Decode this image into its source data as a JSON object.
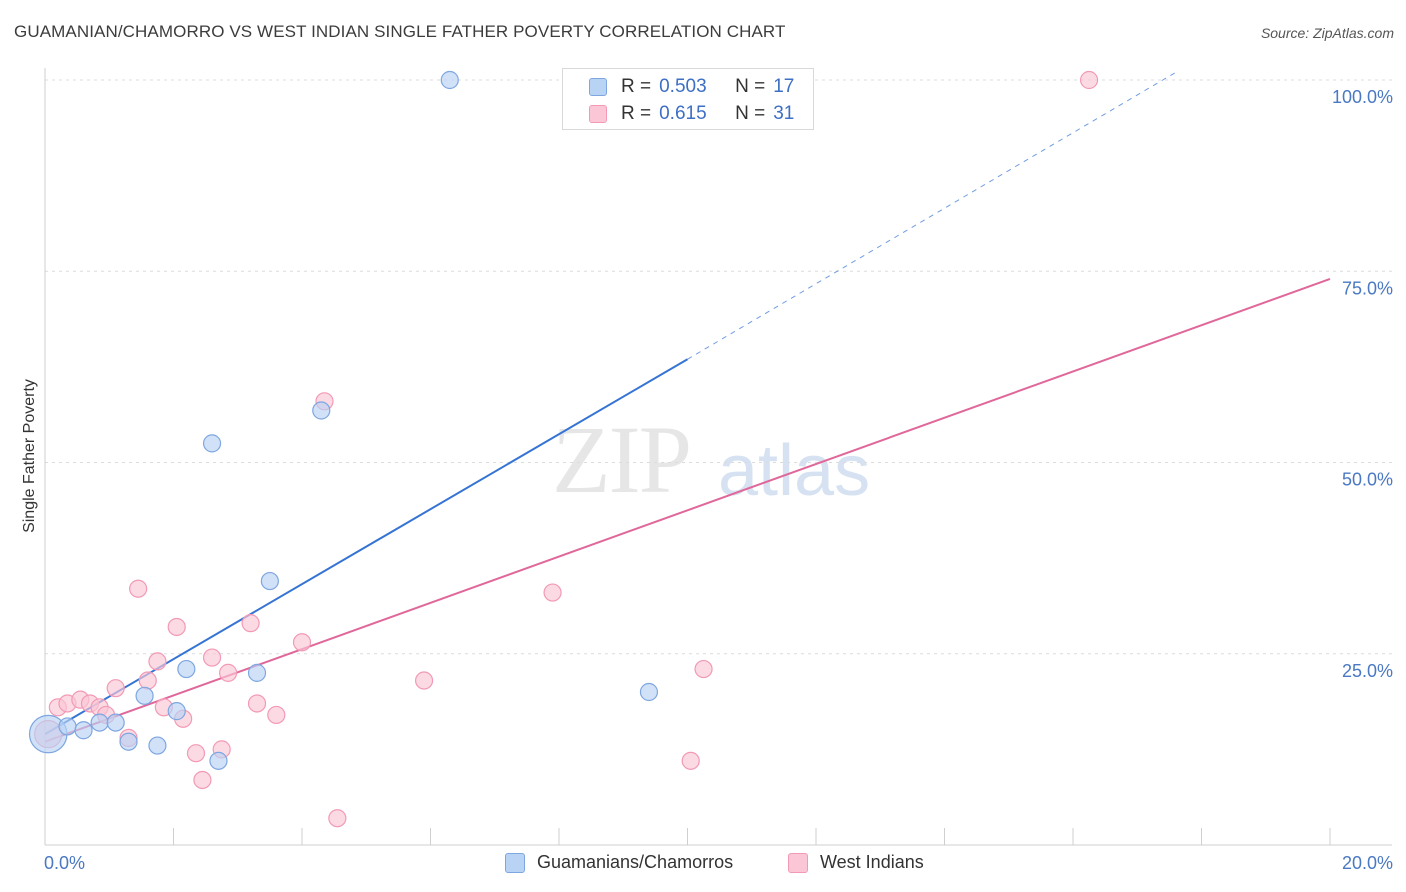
{
  "header": {
    "title": "GUAMANIAN/CHAMORRO VS WEST INDIAN SINGLE FATHER POVERTY CORRELATION CHART",
    "source": "Source: ZipAtlas.com"
  },
  "watermark": {
    "zip": "ZIP",
    "atlas": "atlas"
  },
  "legend": {
    "rows": [
      {
        "r_label": "R =",
        "r_value": "0.503",
        "n_label": "N =",
        "n_value": "17",
        "fill": "#b9d3f5",
        "stroke": "#7ea6e0"
      },
      {
        "r_label": "R =",
        "r_value": "0.615",
        "n_label": "N =",
        "n_value": "31",
        "fill": "#fbc6d5",
        "stroke": "#f29ab5"
      }
    ]
  },
  "bottom_legend": [
    {
      "label": "Guamanians/Chamorros",
      "fill": "#b9d3f5",
      "stroke": "#7ea6e0"
    },
    {
      "label": "West Indians",
      "fill": "#fbc6d5",
      "stroke": "#f29ab5"
    }
  ],
  "chart_data": {
    "type": "scatter",
    "title": "GUAMANIAN/CHAMORRO VS WEST INDIAN SINGLE FATHER POVERTY CORRELATION CHART",
    "xlabel": "",
    "ylabel": "Single Father Poverty",
    "xlim": [
      0,
      20
    ],
    "ylim": [
      0,
      100
    ],
    "x_tick_labels": [
      "0.0%",
      "20.0%"
    ],
    "y_ticks": [
      25,
      50,
      75,
      100
    ],
    "y_tick_labels": [
      "25.0%",
      "50.0%",
      "75.0%",
      "100.0%"
    ],
    "grid": "horizontal dashed",
    "legend_position": "top-center",
    "series": [
      {
        "name": "Guamanians/Chamorros",
        "color": "#3574d4",
        "point_fill": "#b9d3f5",
        "point_stroke": "#7ea6e0",
        "points": [
          {
            "x": 0.05,
            "y": 14.5,
            "size": 22
          },
          {
            "x": 0.35,
            "y": 15.5,
            "size": 10
          },
          {
            "x": 0.6,
            "y": 15.0,
            "size": 10
          },
          {
            "x": 0.85,
            "y": 16.0,
            "size": 10
          },
          {
            "x": 1.1,
            "y": 16.0,
            "size": 10
          },
          {
            "x": 1.3,
            "y": 13.5,
            "size": 10
          },
          {
            "x": 1.55,
            "y": 19.5,
            "size": 10
          },
          {
            "x": 1.75,
            "y": 13.0,
            "size": 10
          },
          {
            "x": 2.05,
            "y": 17.5,
            "size": 10
          },
          {
            "x": 2.2,
            "y": 23.0,
            "size": 10
          },
          {
            "x": 2.6,
            "y": 52.5,
            "size": 10
          },
          {
            "x": 2.7,
            "y": 11.0,
            "size": 10
          },
          {
            "x": 3.3,
            "y": 22.5,
            "size": 10
          },
          {
            "x": 3.5,
            "y": 34.5,
            "size": 10
          },
          {
            "x": 4.3,
            "y": 56.8,
            "size": 10
          },
          {
            "x": 6.3,
            "y": 100.0,
            "size": 10
          },
          {
            "x": 9.4,
            "y": 20.0,
            "size": 10
          }
        ],
        "trend": {
          "x0": 0.0,
          "y0": 14.5,
          "x1": 10.0,
          "y1": 63.5,
          "dash_x1": 17.6,
          "dash_y1": 101.0
        }
      },
      {
        "name": "West Indians",
        "color": "#e0679a",
        "point_fill": "#fbc6d5",
        "point_stroke": "#f29ab5",
        "points": [
          {
            "x": 0.05,
            "y": 14.5,
            "size": 16
          },
          {
            "x": 0.2,
            "y": 18.0,
            "size": 10
          },
          {
            "x": 0.35,
            "y": 18.5,
            "size": 10
          },
          {
            "x": 0.55,
            "y": 19.0,
            "size": 10
          },
          {
            "x": 0.7,
            "y": 18.5,
            "size": 10
          },
          {
            "x": 0.85,
            "y": 18.0,
            "size": 10
          },
          {
            "x": 0.95,
            "y": 17.0,
            "size": 10
          },
          {
            "x": 1.1,
            "y": 20.5,
            "size": 10
          },
          {
            "x": 1.3,
            "y": 14.0,
            "size": 10
          },
          {
            "x": 1.45,
            "y": 33.5,
            "size": 10
          },
          {
            "x": 1.6,
            "y": 21.5,
            "size": 10
          },
          {
            "x": 1.75,
            "y": 24.0,
            "size": 10
          },
          {
            "x": 1.85,
            "y": 18.0,
            "size": 10
          },
          {
            "x": 2.05,
            "y": 28.5,
            "size": 10
          },
          {
            "x": 2.15,
            "y": 16.5,
            "size": 10
          },
          {
            "x": 2.35,
            "y": 12.0,
            "size": 10
          },
          {
            "x": 2.45,
            "y": 8.5,
            "size": 10
          },
          {
            "x": 2.6,
            "y": 24.5,
            "size": 10
          },
          {
            "x": 2.75,
            "y": 12.5,
            "size": 10
          },
          {
            "x": 2.85,
            "y": 22.5,
            "size": 10
          },
          {
            "x": 3.2,
            "y": 29.0,
            "size": 10
          },
          {
            "x": 3.3,
            "y": 18.5,
            "size": 10
          },
          {
            "x": 3.6,
            "y": 17.0,
            "size": 10
          },
          {
            "x": 4.0,
            "y": 26.5,
            "size": 10
          },
          {
            "x": 4.35,
            "y": 58.0,
            "size": 10
          },
          {
            "x": 4.55,
            "y": 3.5,
            "size": 10
          },
          {
            "x": 5.9,
            "y": 21.5,
            "size": 10
          },
          {
            "x": 7.9,
            "y": 33.0,
            "size": 10
          },
          {
            "x": 10.05,
            "y": 11.0,
            "size": 10
          },
          {
            "x": 10.25,
            "y": 23.0,
            "size": 10
          },
          {
            "x": 16.25,
            "y": 100.0,
            "size": 10
          }
        ],
        "trend": {
          "x0": 0.0,
          "y0": 13.5,
          "x1": 20.0,
          "y1": 74.0
        }
      }
    ]
  }
}
